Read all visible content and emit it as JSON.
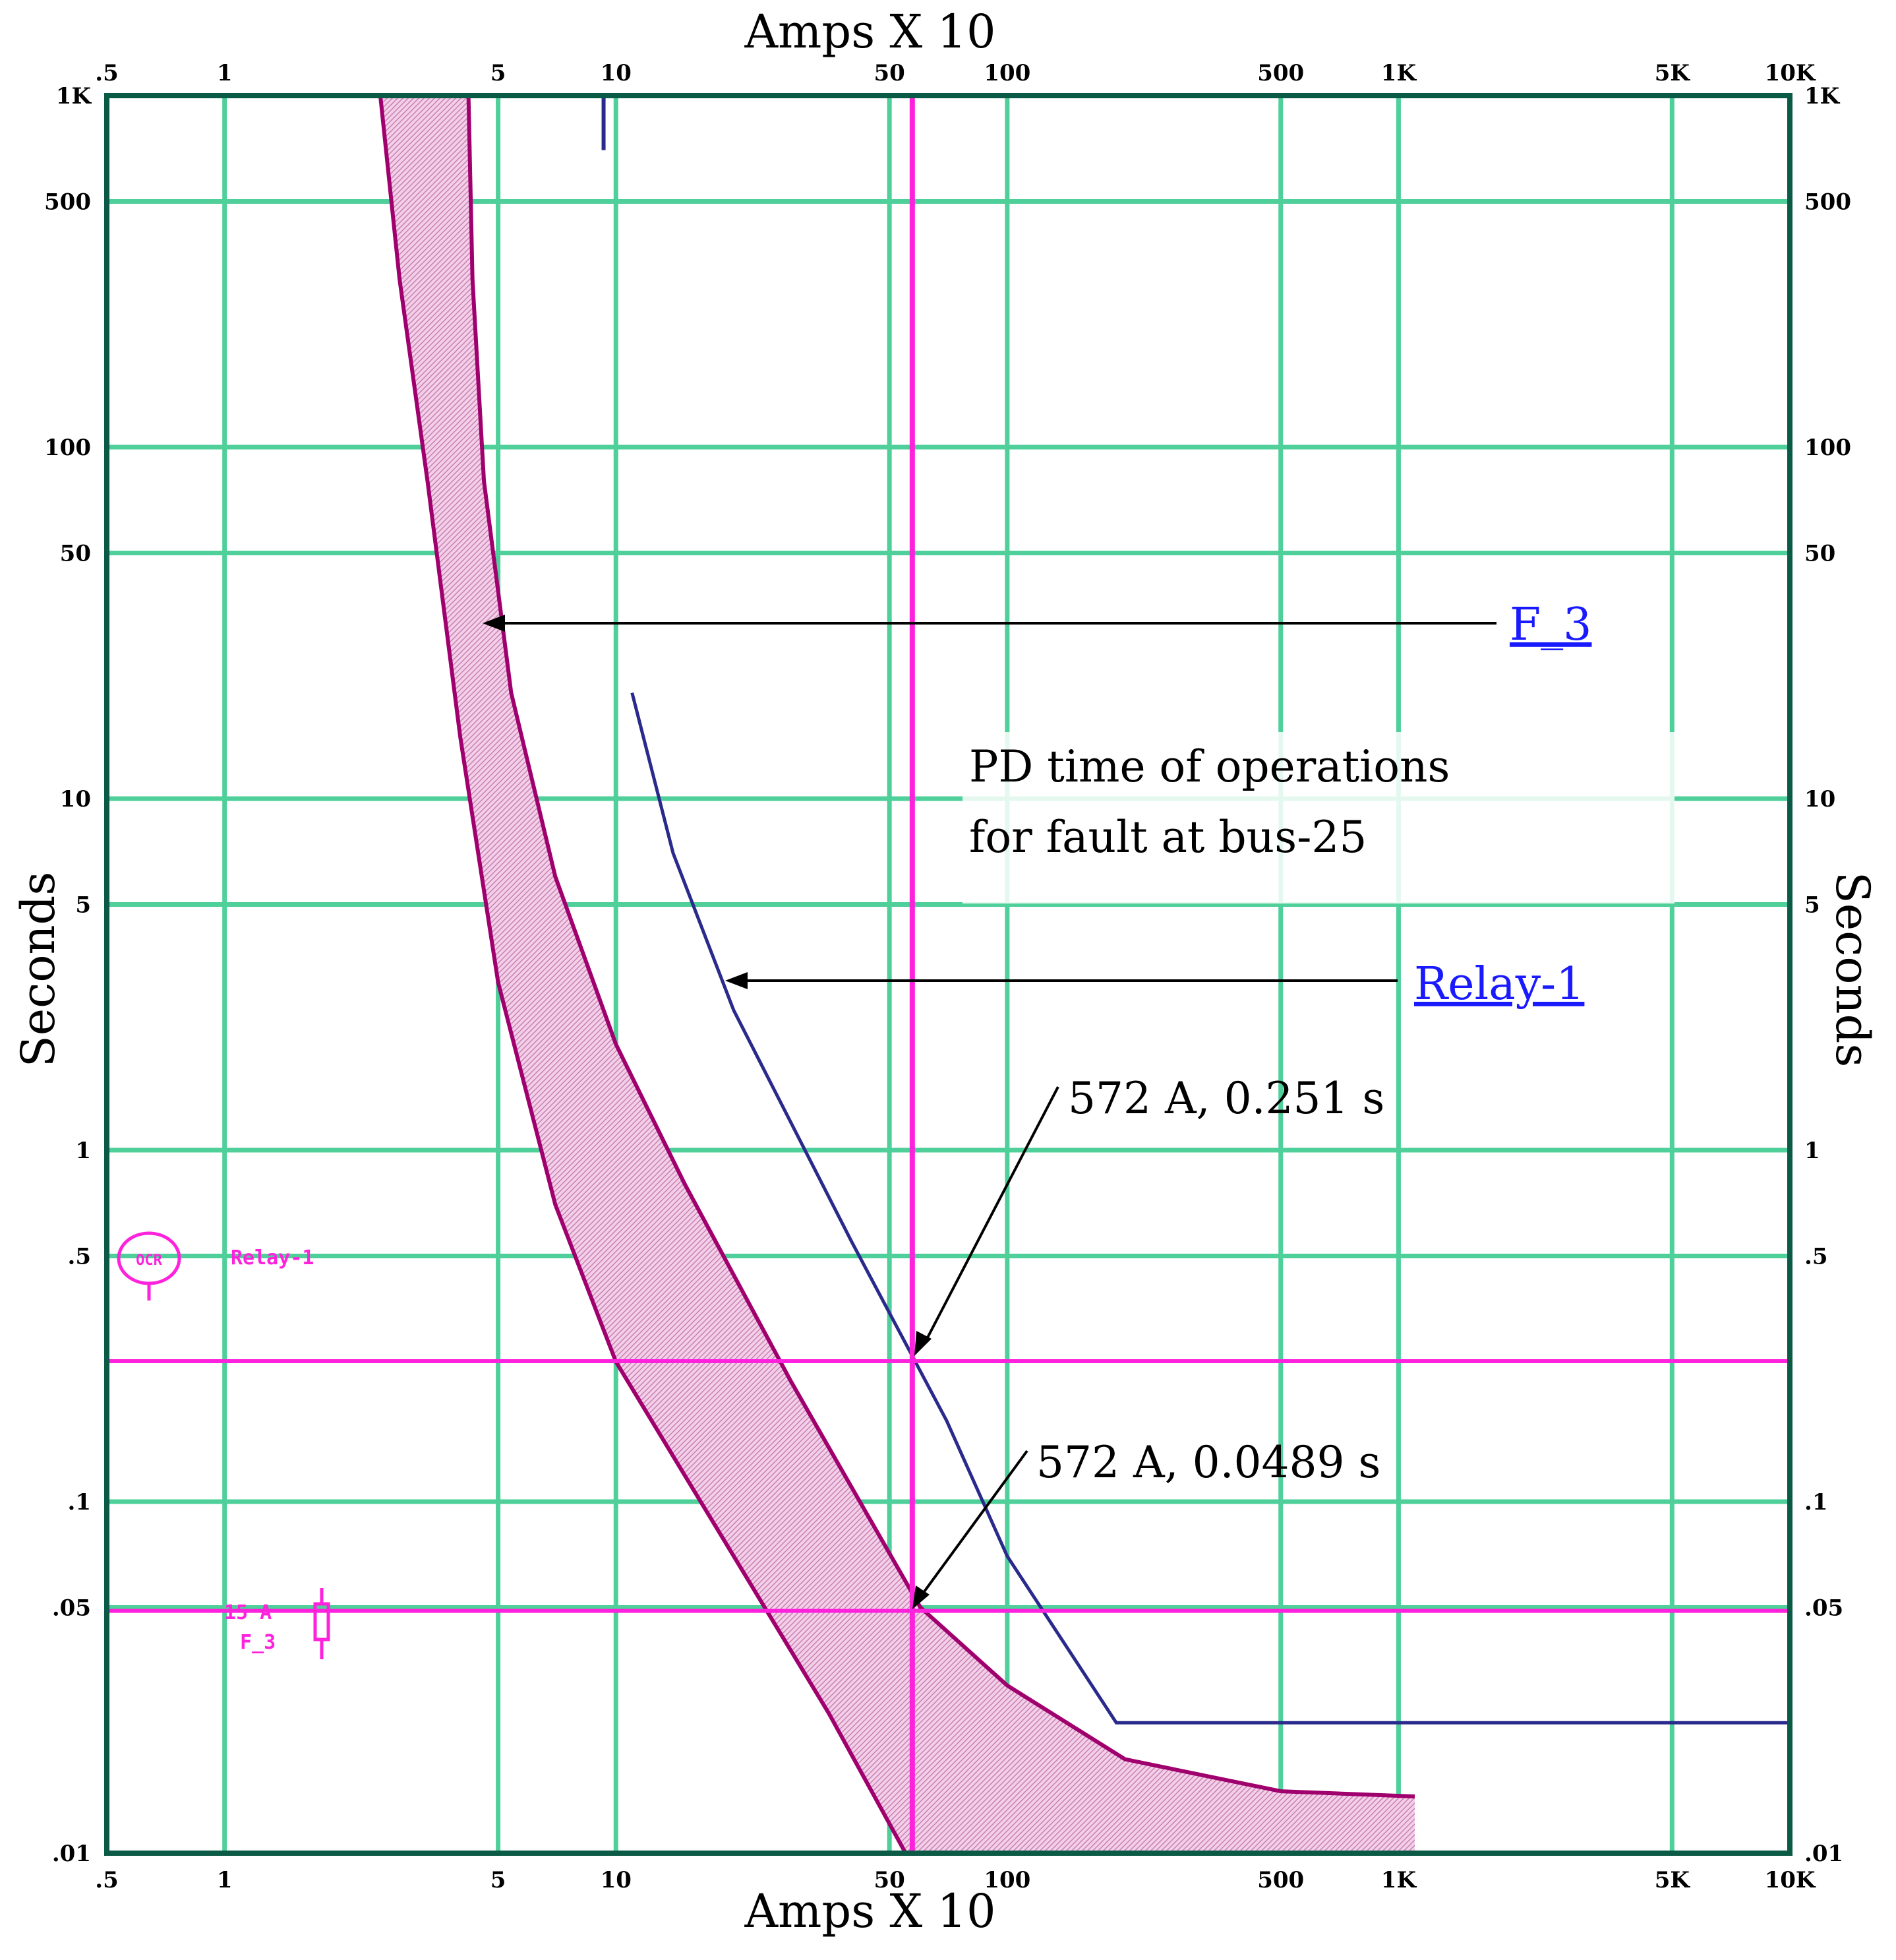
{
  "chart_data": {
    "type": "line",
    "xaxis": {
      "title": "Amps X 10",
      "scale": "log",
      "range": [
        0.5,
        10000
      ],
      "ticks": [
        {
          "value": 0.5,
          "label": ".5"
        },
        {
          "value": 1,
          "label": "1"
        },
        {
          "value": 5,
          "label": "5"
        },
        {
          "value": 10,
          "label": "10"
        },
        {
          "value": 50,
          "label": "50"
        },
        {
          "value": 100,
          "label": "100"
        },
        {
          "value": 500,
          "label": "500"
        },
        {
          "value": 1000,
          "label": "1K"
        },
        {
          "value": 5000,
          "label": "5K"
        },
        {
          "value": 10000,
          "label": "10K"
        }
      ]
    },
    "yaxis": {
      "title": "Seconds",
      "scale": "log",
      "range": [
        0.01,
        1000
      ],
      "ticks": [
        {
          "value": 1000,
          "label": "1K"
        },
        {
          "value": 500,
          "label": "500"
        },
        {
          "value": 100,
          "label": "100"
        },
        {
          "value": 50,
          "label": "50"
        },
        {
          "value": 10,
          "label": "10"
        },
        {
          "value": 5,
          "label": "5"
        },
        {
          "value": 1,
          "label": "1"
        },
        {
          "value": 0.5,
          "label": ".5"
        },
        {
          "value": 0.1,
          "label": ".1"
        },
        {
          "value": 0.05,
          "label": ".05"
        },
        {
          "value": 0.01,
          "label": ".01"
        }
      ]
    },
    "grid": true,
    "series": [
      {
        "name": "F_3",
        "kind": "band",
        "color": "#a0006e",
        "fill": "#e9b3d8",
        "left": [
          [
            2.5,
            1000
          ],
          [
            2.8,
            300
          ],
          [
            3.3,
            80
          ],
          [
            4.0,
            15
          ],
          [
            5.0,
            3.0
          ],
          [
            7.0,
            0.7
          ],
          [
            10.0,
            0.25
          ],
          [
            20.0,
            0.07
          ],
          [
            35.0,
            0.025
          ],
          [
            55.0,
            0.01
          ]
        ],
        "right": [
          [
            4.2,
            1000
          ],
          [
            4.3,
            300
          ],
          [
            4.6,
            80
          ],
          [
            5.4,
            20
          ],
          [
            7.0,
            6.0
          ],
          [
            10.0,
            2.0
          ],
          [
            15.0,
            0.8
          ],
          [
            28.0,
            0.22
          ],
          [
            60.0,
            0.05
          ],
          [
            100.0,
            0.03
          ],
          [
            200.0,
            0.0185
          ],
          [
            500.0,
            0.015
          ],
          [
            1100.0,
            0.0145
          ]
        ]
      },
      {
        "name": "Relay-1",
        "kind": "line",
        "color": "#2a2a8c",
        "points": [
          [
            11.0,
            20.0
          ],
          [
            14.0,
            7.0
          ],
          [
            20.0,
            2.5
          ],
          [
            40.0,
            0.55
          ],
          [
            70.0,
            0.17
          ],
          [
            100.0,
            0.07
          ],
          [
            190.0,
            0.0235
          ],
          [
            10000.0,
            0.0235
          ]
        ]
      }
    ],
    "fault_current": 57.2,
    "fault_times": [
      0.251,
      0.0489
    ],
    "annotations": {
      "title_box": [
        "PD time of operations",
        "for fault at bus-25"
      ],
      "f3_label": "F_3",
      "relay_label": "Relay-1",
      "point1": "572 A, 0.251 s",
      "point2": "572 A, 0.0489 s"
    },
    "device_labels": {
      "relay_tag": "Relay-1",
      "relay_symbol": "OCR",
      "fuse_rating": "15 A",
      "fuse_name": "F_3"
    },
    "colors": {
      "grid": "#4fcf9a",
      "frame": "#0b5a45",
      "fault_lines": "#ff22dd",
      "relay_curve": "#2a2a8c",
      "fuse_band": "#a0006e"
    }
  }
}
